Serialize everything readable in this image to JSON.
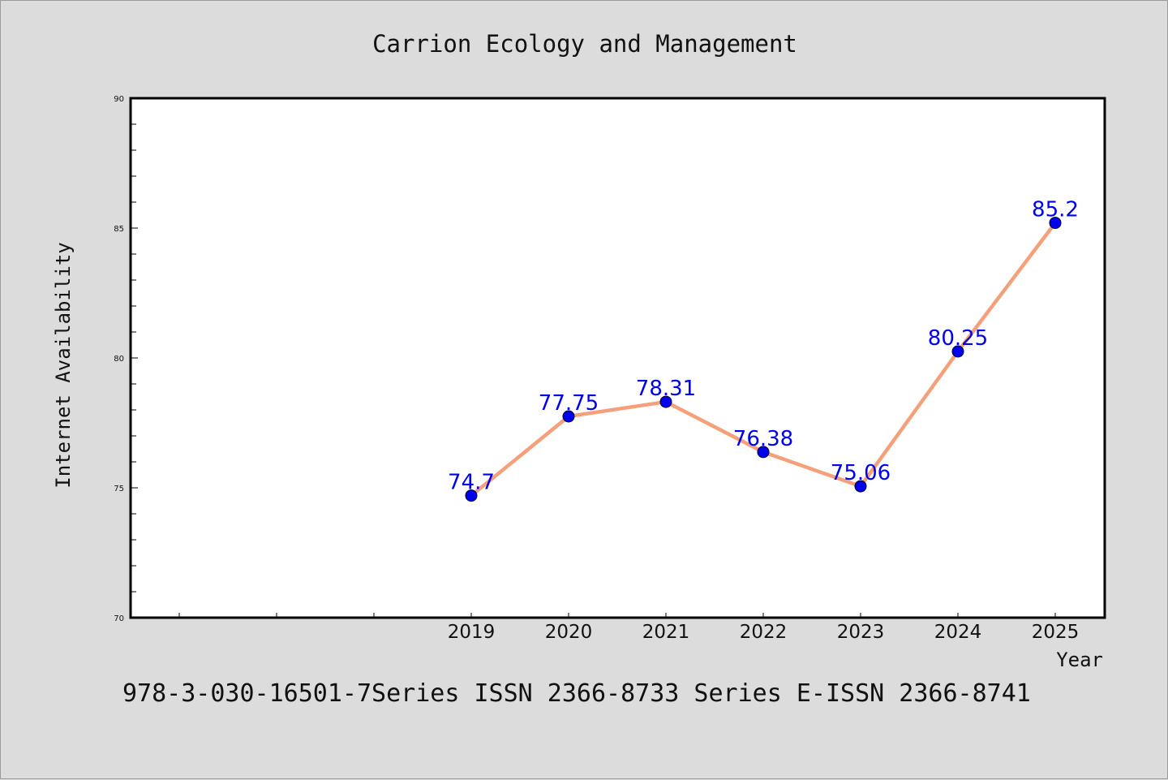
{
  "chart_data": {
    "type": "line",
    "title": "Carrion Ecology and Management",
    "xlabel": "Year",
    "ylabel": "Internet Availability",
    "footer": "978-3-030-16501-7Series ISSN 2366-8733 Series E-ISSN 2366-8741",
    "categories": [
      "2019",
      "2020",
      "2021",
      "2022",
      "2023",
      "2024",
      "2025"
    ],
    "series": [
      {
        "values": [
          74.7,
          77.75,
          78.31,
          76.38,
          75.06,
          80.25,
          85.2
        ]
      }
    ],
    "data_labels": [
      "74.7",
      "77.75",
      "78.31",
      "76.38",
      "75.06",
      "80.25",
      "85.2"
    ],
    "ylim": [
      70,
      90
    ],
    "yticks": [
      "70",
      "75",
      "80",
      "85",
      "90"
    ],
    "grid": false,
    "colors": {
      "line": "#f4a07a",
      "marker": "#0000ee",
      "label": "#0000ee",
      "background": "#dcdcdc",
      "plot": "#ffffff"
    }
  }
}
